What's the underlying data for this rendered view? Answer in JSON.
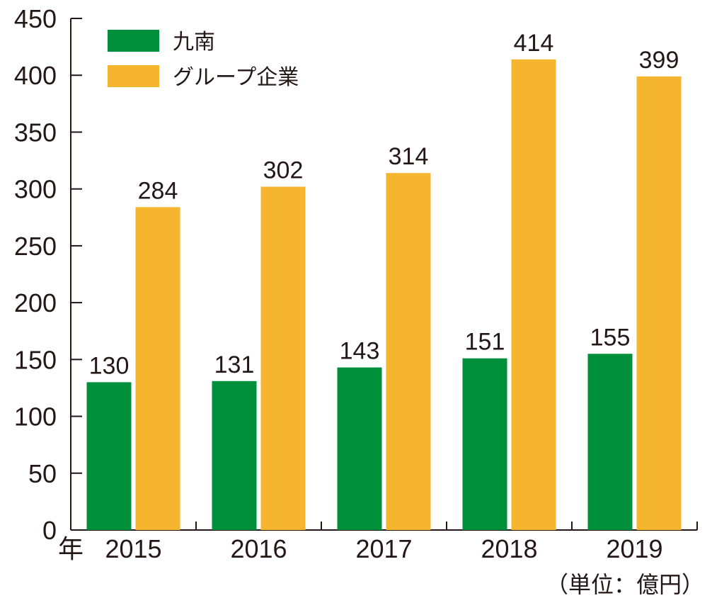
{
  "chart_data": {
    "type": "bar",
    "categories": [
      "2015",
      "2016",
      "2017",
      "2018",
      "2019"
    ],
    "series": [
      {
        "name": "九南",
        "values": [
          130,
          131,
          143,
          151,
          155
        ],
        "color": "#008f3a"
      },
      {
        "name": "グループ企業",
        "values": [
          284,
          302,
          314,
          414,
          399
        ],
        "color": "#f5b52e"
      }
    ],
    "data_labels": [
      [
        "130",
        "131",
        "143",
        "151",
        "155"
      ],
      [
        "284",
        "302",
        "314",
        "414",
        "399"
      ]
    ],
    "xlabel": "年",
    "ylabel": "",
    "unit": "（単位：億円）",
    "ylim": [
      0,
      450
    ],
    "yticks": [
      0,
      50,
      100,
      150,
      200,
      250,
      300,
      350,
      400,
      450
    ],
    "ytick_labels": [
      "0",
      "50",
      "100",
      "150",
      "200",
      "250",
      "300",
      "350",
      "400",
      "450"
    ],
    "grid": false,
    "legend_position": "top-left",
    "axis_color": "#231815"
  }
}
